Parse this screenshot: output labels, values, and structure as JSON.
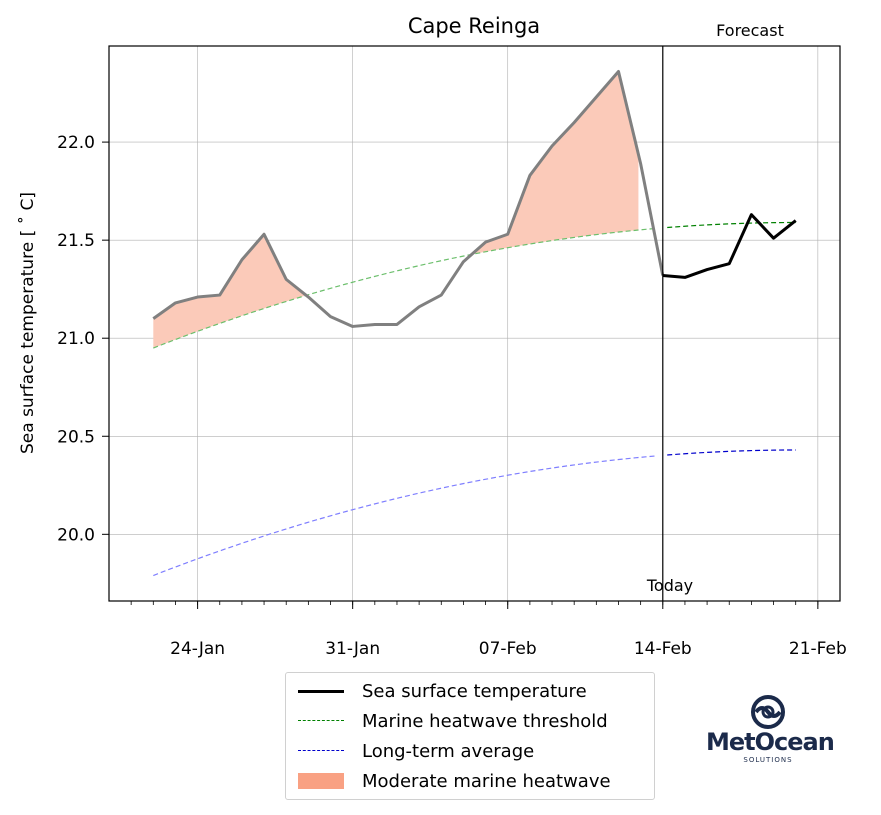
{
  "chart_data": {
    "type": "line",
    "title": "Cape Reinga",
    "ylabel": "Sea surface temperature [$^\\circ$C]",
    "ylabel_display": "Sea surface temperature [ ˚ C]",
    "xlabel": "",
    "ylim": [
      19.66,
      22.49
    ],
    "xlim_days_from_label": "2023-01-20",
    "xticks": [
      "24-Jan",
      "31-Jan",
      "07-Feb",
      "14-Feb",
      "21-Feb"
    ],
    "yticks": [
      "20.0",
      "20.5",
      "21.0",
      "21.5",
      "22.0"
    ],
    "grid": true,
    "annotations": {
      "today": "Today",
      "forecast": "Forecast"
    },
    "series": [
      {
        "name": "Sea surface temperature",
        "color": "#808080",
        "x": [
          "22-Jan",
          "23-Jan",
          "24-Jan",
          "25-Jan",
          "26-Jan",
          "27-Jan",
          "28-Jan",
          "29-Jan",
          "30-Jan",
          "31-Jan",
          "01-Feb",
          "02-Feb",
          "03-Feb",
          "04-Feb",
          "05-Feb",
          "06-Feb",
          "07-Feb",
          "08-Feb",
          "09-Feb",
          "10-Feb",
          "11-Feb",
          "12-Feb",
          "13-Feb",
          "14-Feb"
        ],
        "values": [
          21.1,
          21.18,
          21.21,
          21.22,
          21.4,
          21.53,
          21.3,
          21.21,
          21.11,
          21.06,
          21.07,
          21.07,
          21.16,
          21.22,
          21.39,
          21.49,
          21.53,
          21.83,
          21.98,
          22.1,
          22.23,
          22.36,
          21.89,
          21.32
        ]
      },
      {
        "name": "Sea surface temperature (forecast)",
        "color": "#000000",
        "x": [
          "14-Feb",
          "15-Feb",
          "16-Feb",
          "17-Feb",
          "18-Feb",
          "19-Feb",
          "20-Feb"
        ],
        "values": [
          21.32,
          21.31,
          21.35,
          21.38,
          21.63,
          21.51,
          21.6
        ]
      },
      {
        "name": "Marine heatwave threshold",
        "color": "#008000",
        "x_start": "22-Jan",
        "x_end": "20-Feb",
        "values_start_end": [
          20.95,
          21.59
        ]
      },
      {
        "name": "Long-term average",
        "color": "#0000cc",
        "x_start": "22-Jan",
        "x_end": "20-Feb",
        "values_start_end": [
          19.79,
          20.43
        ]
      }
    ],
    "legend": {
      "position": "below",
      "entries": [
        {
          "label": "Sea surface temperature",
          "style": "solid",
          "color": "#000000"
        },
        {
          "label": "Marine heatwave threshold",
          "style": "dashed",
          "color": "#008000"
        },
        {
          "label": "Long-term average",
          "style": "dashed",
          "color": "#0000cc"
        },
        {
          "label": "Moderate marine heatwave",
          "style": "fill",
          "color": "#f9a183"
        }
      ]
    }
  },
  "logo": {
    "name": "MetOcean",
    "subtitle": "SOLUTIONS"
  }
}
